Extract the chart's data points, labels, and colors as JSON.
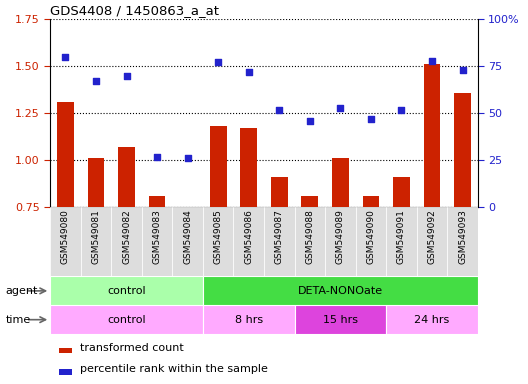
{
  "title": "GDS4408 / 1450863_a_at",
  "samples": [
    "GSM549080",
    "GSM549081",
    "GSM549082",
    "GSM549083",
    "GSM549084",
    "GSM549085",
    "GSM549086",
    "GSM549087",
    "GSM549088",
    "GSM549089",
    "GSM549090",
    "GSM549091",
    "GSM549092",
    "GSM549093"
  ],
  "transformed_count": [
    1.31,
    1.01,
    1.07,
    0.81,
    0.75,
    1.18,
    1.17,
    0.91,
    0.81,
    1.01,
    0.81,
    0.91,
    1.51,
    1.36
  ],
  "percentile_rank": [
    80,
    67,
    70,
    27,
    26,
    77,
    72,
    52,
    46,
    53,
    47,
    52,
    78,
    73
  ],
  "ylim_left": [
    0.75,
    1.75
  ],
  "ylim_right": [
    0,
    100
  ],
  "yticks_left": [
    0.75,
    1.0,
    1.25,
    1.5,
    1.75
  ],
  "yticks_right": [
    0,
    25,
    50,
    75,
    100
  ],
  "bar_color": "#cc2200",
  "dot_color": "#2222cc",
  "bar_bottom": 0.75,
  "agent_groups": [
    {
      "label": "control",
      "start": 0,
      "end": 5,
      "color": "#aaffaa"
    },
    {
      "label": "DETA-NONOate",
      "start": 5,
      "end": 14,
      "color": "#44dd44"
    }
  ],
  "time_groups": [
    {
      "label": "control",
      "start": 0,
      "end": 5,
      "color": "#ffaaff"
    },
    {
      "label": "8 hrs",
      "start": 5,
      "end": 8,
      "color": "#ffaaff"
    },
    {
      "label": "15 hrs",
      "start": 8,
      "end": 11,
      "color": "#dd44dd"
    },
    {
      "label": "24 hrs",
      "start": 11,
      "end": 14,
      "color": "#ffaaff"
    }
  ],
  "legend_bar_label": "transformed count",
  "legend_dot_label": "percentile rank within the sample",
  "tick_label_fontsize": 6.5,
  "axis_label_color_left": "#cc2200",
  "axis_label_color_right": "#2222cc",
  "xtick_bg_color": "#dddddd"
}
